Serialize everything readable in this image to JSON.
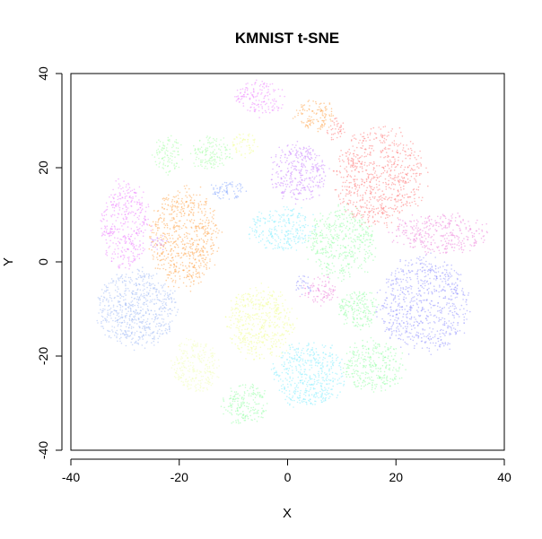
{
  "chart_data": {
    "type": "scatter",
    "title": "KMNIST t-SNE",
    "xlabel": "X",
    "ylabel": "Y",
    "xlim": [
      -40,
      40
    ],
    "ylim": [
      -40,
      40
    ],
    "xticks": [
      -40,
      -20,
      0,
      20,
      40
    ],
    "yticks": [
      -40,
      -20,
      0,
      20,
      40
    ],
    "grid": false,
    "legend": "none",
    "clusters": [
      {
        "color": "#ff8080",
        "cx": 17,
        "cy": 18,
        "rx": 8,
        "ry": 10,
        "n": 700
      },
      {
        "color": "#ff8080",
        "cx": 9,
        "cy": 28,
        "rx": 1.6,
        "ry": 2.5,
        "n": 40
      },
      {
        "color": "#9999ff",
        "cx": 25,
        "cy": -9,
        "rx": 8,
        "ry": 10,
        "n": 700
      },
      {
        "color": "#ffaa55",
        "cx": -19,
        "cy": 5,
        "rx": 6,
        "ry": 10,
        "n": 650
      },
      {
        "color": "#ffaa55",
        "cx": 5,
        "cy": 31,
        "rx": 3.5,
        "ry": 3,
        "n": 120
      },
      {
        "color": "#a8c0f5",
        "cx": -28,
        "cy": -10,
        "rx": 7,
        "ry": 8,
        "n": 650
      },
      {
        "color": "#ee88ff",
        "cx": -30,
        "cy": 8,
        "rx": 4.5,
        "ry": 9,
        "n": 380
      },
      {
        "color": "#ee88ff",
        "cx": -5,
        "cy": 35,
        "rx": 4.5,
        "ry": 3.5,
        "n": 150
      },
      {
        "color": "#cc88ff",
        "cx": 2,
        "cy": 19,
        "rx": 5,
        "ry": 6,
        "n": 320
      },
      {
        "color": "#cc88ff",
        "cx": -24,
        "cy": 4,
        "rx": 1.2,
        "ry": 1.8,
        "n": 25
      },
      {
        "color": "#ee88dd",
        "cx": 28,
        "cy": 6,
        "rx": 9,
        "ry": 4,
        "n": 330
      },
      {
        "color": "#ee88dd",
        "cx": 6,
        "cy": -6,
        "rx": 3,
        "ry": 3,
        "n": 90
      },
      {
        "color": "#f2ff99",
        "cx": -5,
        "cy": -13,
        "rx": 6,
        "ry": 7.5,
        "n": 480
      },
      {
        "color": "#f2ff99",
        "cx": -8,
        "cy": 25,
        "rx": 2.5,
        "ry": 2.5,
        "n": 60
      },
      {
        "color": "#f2ffbb",
        "cx": -17,
        "cy": -22,
        "rx": 4,
        "ry": 5.5,
        "n": 260
      },
      {
        "color": "#88eeff",
        "cx": 4,
        "cy": -24,
        "rx": 6.5,
        "ry": 7,
        "n": 450
      },
      {
        "color": "#88eeff",
        "cx": -1,
        "cy": 7,
        "rx": 6,
        "ry": 4.5,
        "n": 260
      },
      {
        "color": "#99ffaa",
        "cx": 10,
        "cy": 4,
        "rx": 6,
        "ry": 7.5,
        "n": 420
      },
      {
        "color": "#99ffaa",
        "cx": 16,
        "cy": -22,
        "rx": 5.5,
        "ry": 5.5,
        "n": 300
      },
      {
        "color": "#99ffaa",
        "cx": 13,
        "cy": -10,
        "rx": 3.5,
        "ry": 4,
        "n": 180
      },
      {
        "color": "#99ffaa",
        "cx": -8,
        "cy": -30,
        "rx": 4,
        "ry": 4.5,
        "n": 180
      },
      {
        "color": "#aaffaa",
        "cx": -14,
        "cy": 23,
        "rx": 3.5,
        "ry": 3.5,
        "n": 140
      },
      {
        "color": "#aaffaa",
        "cx": -22,
        "cy": 23,
        "rx": 2.5,
        "ry": 4,
        "n": 100
      },
      {
        "color": "#88aaff",
        "cx": -11,
        "cy": 15,
        "rx": 3,
        "ry": 2,
        "n": 70
      },
      {
        "color": "#9999ff",
        "cx": 3,
        "cy": -5,
        "rx": 1.5,
        "ry": 2,
        "n": 30
      }
    ]
  }
}
